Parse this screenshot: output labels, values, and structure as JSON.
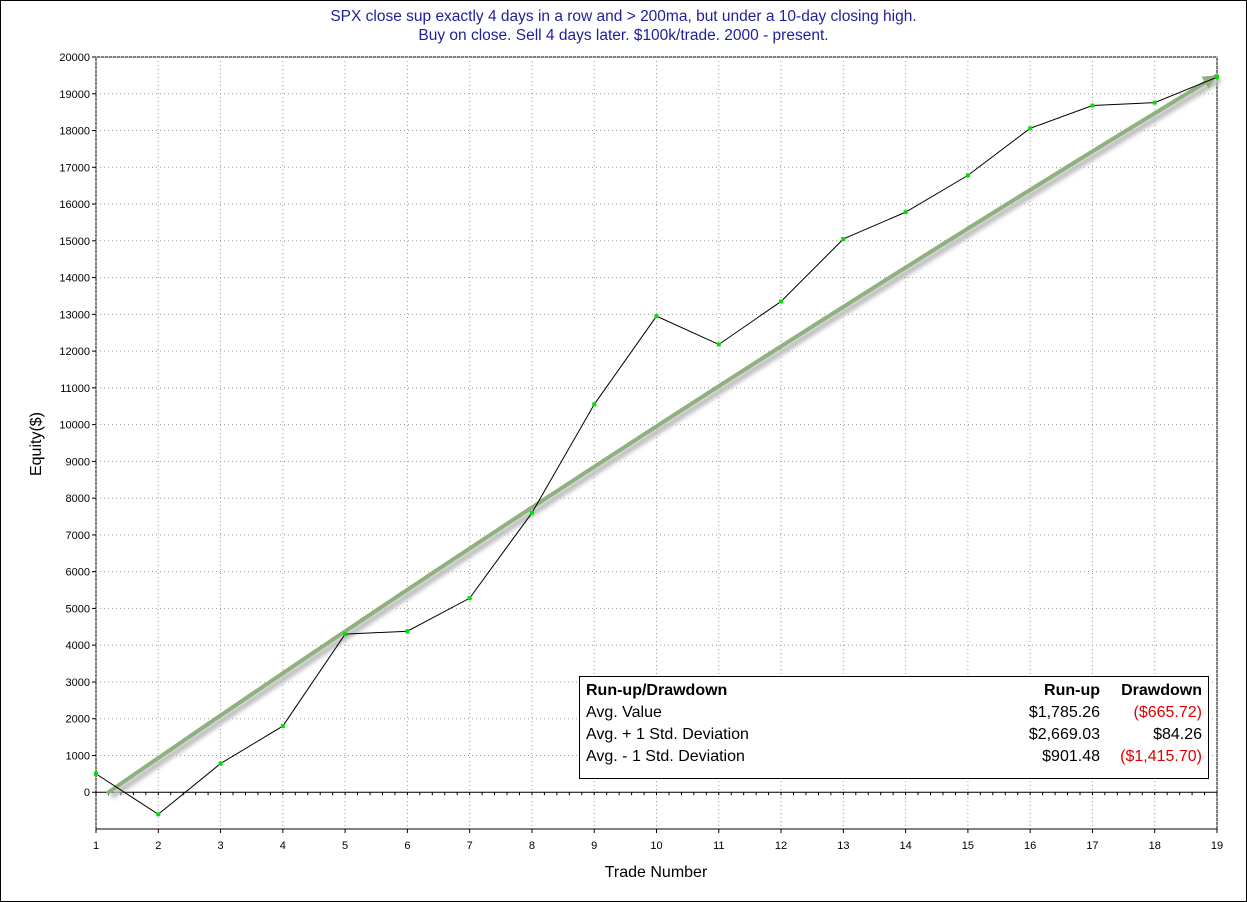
{
  "chart_data": {
    "type": "line",
    "title": "SPX close sup exactly 4 days in a row and > 200ma, but under a 10-day closing high.",
    "subtitle": "Buy on close. Sell 4 days later. $100k/trade. 2000 - present.",
    "xlabel": "Trade Number",
    "ylabel": "Equity($)",
    "xlim": [
      1,
      19
    ],
    "ylim": [
      -1000,
      20000
    ],
    "x_ticks": [
      1,
      2,
      3,
      4,
      5,
      6,
      7,
      8,
      9,
      10,
      11,
      12,
      13,
      14,
      15,
      16,
      17,
      18,
      19
    ],
    "y_ticks": [
      0,
      1000,
      2000,
      3000,
      4000,
      5000,
      6000,
      7000,
      8000,
      9000,
      10000,
      11000,
      12000,
      13000,
      14000,
      15000,
      16000,
      17000,
      18000,
      19000,
      20000
    ],
    "grid": true,
    "series": [
      {
        "values": [
          500,
          -600,
          780,
          1800,
          4300,
          4380,
          5280,
          7600,
          10550,
          12950,
          12180,
          13350,
          15050,
          15780,
          16780,
          18060,
          18680,
          18760,
          19450
        ],
        "line_color": "#000000",
        "marker_color": "#00e000"
      }
    ],
    "trend_line": {
      "x": [
        1.2,
        19
      ],
      "y": [
        0,
        19500
      ],
      "color": "#90b080"
    }
  },
  "stats_table": {
    "header": {
      "label": "Run-up/Drawdown",
      "runup": "Run-up",
      "drawdown": "Drawdown"
    },
    "rows": [
      {
        "label": "Avg. Value",
        "runup": "$1,785.26",
        "drawdown": "($665.72)",
        "drawdown_negative": true
      },
      {
        "label": "Avg. + 1 Std. Deviation",
        "runup": "$2,669.03",
        "drawdown": "$84.26",
        "drawdown_negative": false
      },
      {
        "label": "Avg. - 1 Std. Deviation",
        "runup": "$901.48",
        "drawdown": "($1,415.70)",
        "drawdown_negative": true
      }
    ]
  }
}
